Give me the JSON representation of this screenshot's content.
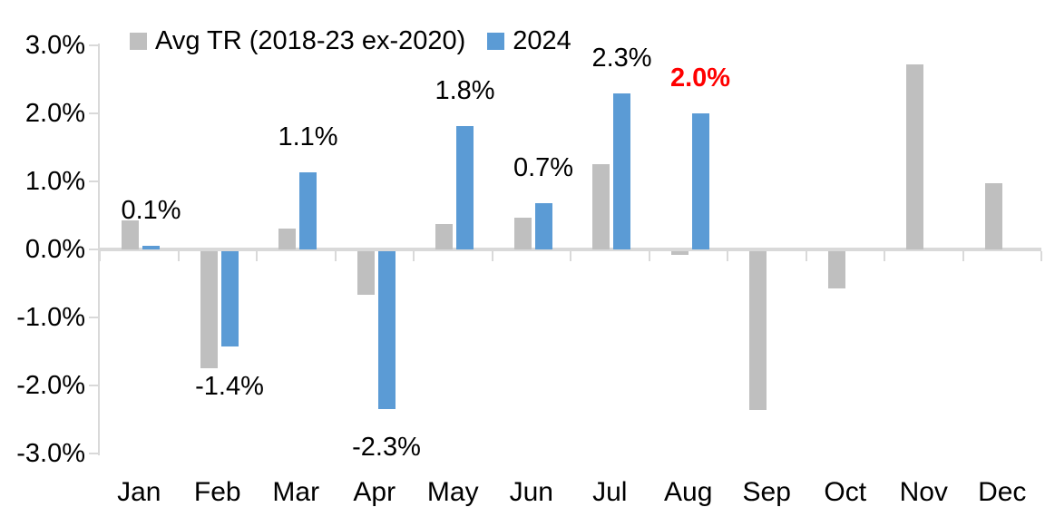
{
  "chart_data": {
    "type": "bar",
    "title": "",
    "categories": [
      "Jan",
      "Feb",
      "Mar",
      "Apr",
      "May",
      "Jun",
      "Jul",
      "Aug",
      "Sep",
      "Oct",
      "Nov",
      "Dec"
    ],
    "series": [
      {
        "name": "Avg TR (2018-23 ex-2020)",
        "color": "#BFBFBF",
        "values": [
          0.43,
          -1.74,
          0.31,
          -0.66,
          0.37,
          0.47,
          1.25,
          -0.08,
          -2.36,
          -0.57,
          2.72,
          0.97
        ]
      },
      {
        "name": "2024",
        "color": "#5B9BD5",
        "values": [
          0.05,
          -1.43,
          1.13,
          -2.35,
          1.81,
          0.68,
          2.3,
          2.0,
          null,
          null,
          null,
          null
        ],
        "data_labels": [
          "0.1%",
          "-1.4%",
          "1.1%",
          "-2.3%",
          "1.8%",
          "0.7%",
          "2.3%",
          "2.0%",
          null,
          null,
          null,
          null
        ],
        "data_label_colors": [
          "#000000",
          "#000000",
          "#000000",
          "#000000",
          "#000000",
          "#000000",
          "#000000",
          "#FF0000",
          null,
          null,
          null,
          null
        ]
      }
    ],
    "y_axis": {
      "tick_labels": [
        "3.0%",
        "2.0%",
        "1.0%",
        "0.0%",
        "-1.0%",
        "-2.0%",
        "-3.0%"
      ],
      "tick_values": [
        3,
        2,
        1,
        0,
        -1,
        -2,
        -3
      ],
      "ylim": [
        -3,
        3
      ],
      "unit": "%"
    },
    "grid": false,
    "legend_position": "top",
    "highlight": {
      "category": "Aug",
      "label": "2.0%",
      "color": "#FF0000"
    }
  },
  "legend": {
    "items": [
      {
        "label": "Avg TR (2018-23 ex-2020)",
        "color": "#BFBFBF"
      },
      {
        "label": "2024",
        "color": "#5B9BD5"
      }
    ]
  },
  "colors": {
    "axis": "#D9D9D9",
    "text": "#000000",
    "background": "#FFFFFF"
  }
}
